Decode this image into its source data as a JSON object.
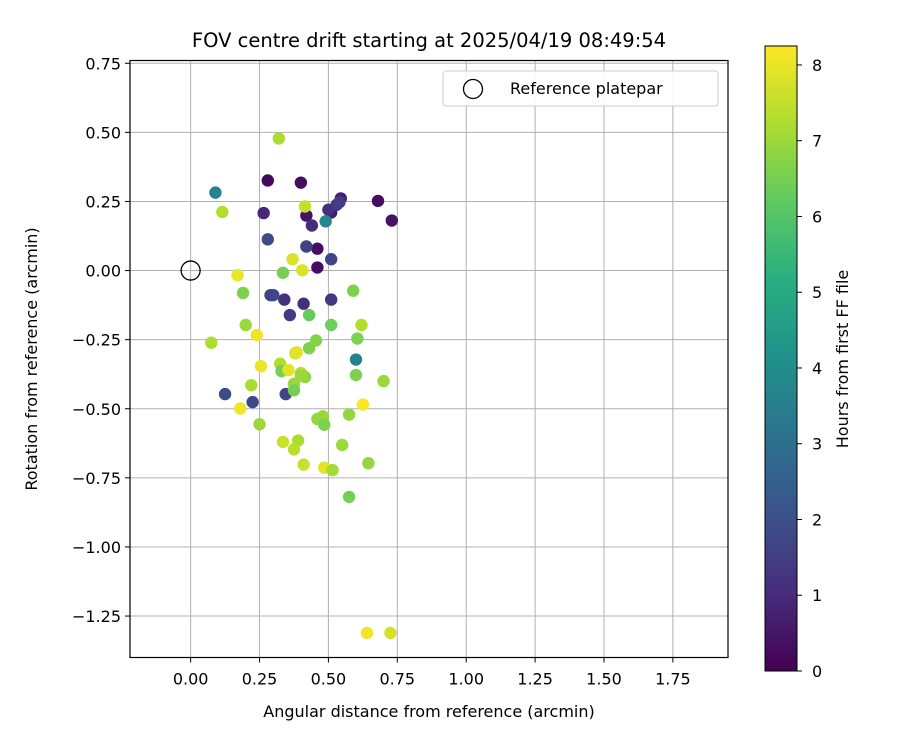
{
  "chart_data": {
    "type": "scatter",
    "title": "FOV centre drift starting at 2025/04/19 08:49:54",
    "xlabel": "Angular distance from reference (arcmin)",
    "ylabel": "Rotation from reference (arcmin)",
    "xlim": [
      -0.22,
      1.95
    ],
    "ylim": [
      -1.4,
      0.76
    ],
    "xticks": [
      "0.00",
      "0.25",
      "0.50",
      "0.75",
      "1.00",
      "1.25",
      "1.50",
      "1.75"
    ],
    "xtick_values": [
      0,
      0.25,
      0.5,
      0.75,
      1.0,
      1.25,
      1.5,
      1.75
    ],
    "yticks": [
      "0.75",
      "0.50",
      "0.25",
      "0.00",
      "−0.25",
      "−0.50",
      "−0.75",
      "−1.00",
      "−1.25"
    ],
    "ytick_values": [
      0.75,
      0.5,
      0.25,
      0,
      -0.25,
      -0.5,
      -0.75,
      -1.0,
      -1.25
    ],
    "grid": true,
    "legend": {
      "position": "top-right",
      "entries": [
        "Reference platepar"
      ]
    },
    "reference_point": {
      "x": 0,
      "y": 0,
      "marker": "open-circle"
    },
    "colorbar": {
      "label": "Hours from first FF file",
      "colormap": "viridis",
      "range": [
        0,
        8.25
      ],
      "ticks": [
        "0",
        "1",
        "2",
        "3",
        "4",
        "5",
        "6",
        "7",
        "8"
      ],
      "tick_values": [
        0,
        1,
        2,
        3,
        4,
        5,
        6,
        7,
        8
      ]
    },
    "points": [
      {
        "x": 0.28,
        "y": 0.326,
        "c": 0.2
      },
      {
        "x": 0.4,
        "y": 0.318,
        "c": 0.3
      },
      {
        "x": 0.68,
        "y": 0.252,
        "c": 0.3
      },
      {
        "x": 0.73,
        "y": 0.181,
        "c": 0.4
      },
      {
        "x": 0.42,
        "y": 0.199,
        "c": 0.4
      },
      {
        "x": 0.46,
        "y": 0.079,
        "c": 0.3
      },
      {
        "x": 0.46,
        "y": 0.011,
        "c": 0.3
      },
      {
        "x": 0.51,
        "y": 0.21,
        "c": 0.6
      },
      {
        "x": 0.545,
        "y": 0.261,
        "c": 0.7
      },
      {
        "x": 0.265,
        "y": 0.208,
        "c": 0.9
      },
      {
        "x": 0.44,
        "y": 0.163,
        "c": 1.0
      },
      {
        "x": 0.5,
        "y": 0.22,
        "c": 1.1
      },
      {
        "x": 0.53,
        "y": 0.238,
        "c": 1.3
      },
      {
        "x": 0.54,
        "y": 0.247,
        "c": 1.5
      },
      {
        "x": 0.42,
        "y": 0.087,
        "c": 1.6
      },
      {
        "x": 0.51,
        "y": 0.041,
        "c": 1.7
      },
      {
        "x": 0.28,
        "y": 0.113,
        "c": 1.9
      },
      {
        "x": 0.34,
        "y": -0.105,
        "c": 1.2
      },
      {
        "x": 0.41,
        "y": -0.12,
        "c": 1.1
      },
      {
        "x": 0.36,
        "y": -0.161,
        "c": 1.4
      },
      {
        "x": 0.51,
        "y": -0.105,
        "c": 1.3
      },
      {
        "x": 0.29,
        "y": -0.089,
        "c": 1.6
      },
      {
        "x": 0.3,
        "y": -0.089,
        "c": 1.7
      },
      {
        "x": 0.125,
        "y": -0.447,
        "c": 1.9
      },
      {
        "x": 0.225,
        "y": -0.476,
        "c": 1.8
      },
      {
        "x": 0.345,
        "y": -0.447,
        "c": 1.7
      },
      {
        "x": 0.09,
        "y": 0.282,
        "c": 3.7
      },
      {
        "x": 0.49,
        "y": 0.178,
        "c": 3.8
      },
      {
        "x": 0.6,
        "y": -0.322,
        "c": 3.7
      },
      {
        "x": 0.32,
        "y": 0.478,
        "c": 7.2
      },
      {
        "x": 0.115,
        "y": 0.212,
        "c": 7.3
      },
      {
        "x": 0.415,
        "y": 0.232,
        "c": 7.5
      },
      {
        "x": 0.37,
        "y": 0.041,
        "c": 7.8
      },
      {
        "x": 0.405,
        "y": 0.001,
        "c": 7.8
      },
      {
        "x": 0.17,
        "y": -0.017,
        "c": 8.0
      },
      {
        "x": 0.335,
        "y": -0.008,
        "c": 6.5
      },
      {
        "x": 0.19,
        "y": -0.081,
        "c": 6.6
      },
      {
        "x": 0.43,
        "y": -0.161,
        "c": 6.3
      },
      {
        "x": 0.51,
        "y": -0.197,
        "c": 6.4
      },
      {
        "x": 0.59,
        "y": -0.073,
        "c": 6.6
      },
      {
        "x": 0.2,
        "y": -0.197,
        "c": 7.0
      },
      {
        "x": 0.075,
        "y": -0.261,
        "c": 7.2
      },
      {
        "x": 0.24,
        "y": -0.233,
        "c": 8.1
      },
      {
        "x": 0.62,
        "y": -0.197,
        "c": 7.3
      },
      {
        "x": 0.605,
        "y": -0.246,
        "c": 6.6
      },
      {
        "x": 0.43,
        "y": -0.281,
        "c": 6.6
      },
      {
        "x": 0.455,
        "y": -0.253,
        "c": 6.7
      },
      {
        "x": 0.38,
        "y": -0.299,
        "c": 7.6
      },
      {
        "x": 0.385,
        "y": -0.296,
        "c": 7.9
      },
      {
        "x": 0.325,
        "y": -0.337,
        "c": 7.3
      },
      {
        "x": 0.33,
        "y": -0.364,
        "c": 6.5
      },
      {
        "x": 0.255,
        "y": -0.346,
        "c": 8.0
      },
      {
        "x": 0.355,
        "y": -0.36,
        "c": 7.9
      },
      {
        "x": 0.4,
        "y": -0.371,
        "c": 7.3
      },
      {
        "x": 0.415,
        "y": -0.385,
        "c": 6.8
      },
      {
        "x": 0.4,
        "y": -0.381,
        "c": 7.0
      },
      {
        "x": 0.6,
        "y": -0.378,
        "c": 6.6
      },
      {
        "x": 0.7,
        "y": -0.4,
        "c": 7.0
      },
      {
        "x": 0.375,
        "y": -0.41,
        "c": 7.0
      },
      {
        "x": 0.375,
        "y": -0.433,
        "c": 6.5
      },
      {
        "x": 0.22,
        "y": -0.415,
        "c": 7.2
      },
      {
        "x": 0.18,
        "y": -0.499,
        "c": 8.1
      },
      {
        "x": 0.625,
        "y": -0.485,
        "c": 8.2
      },
      {
        "x": 0.575,
        "y": -0.521,
        "c": 6.9
      },
      {
        "x": 0.48,
        "y": -0.527,
        "c": 7.0
      },
      {
        "x": 0.46,
        "y": -0.537,
        "c": 6.9
      },
      {
        "x": 0.485,
        "y": -0.558,
        "c": 6.6
      },
      {
        "x": 0.25,
        "y": -0.556,
        "c": 7.0
      },
      {
        "x": 0.335,
        "y": -0.62,
        "c": 7.6
      },
      {
        "x": 0.39,
        "y": -0.615,
        "c": 7.2
      },
      {
        "x": 0.55,
        "y": -0.631,
        "c": 7.0
      },
      {
        "x": 0.375,
        "y": -0.647,
        "c": 7.4
      },
      {
        "x": 0.645,
        "y": -0.697,
        "c": 6.9
      },
      {
        "x": 0.41,
        "y": -0.702,
        "c": 7.6
      },
      {
        "x": 0.485,
        "y": -0.713,
        "c": 7.9
      },
      {
        "x": 0.515,
        "y": -0.722,
        "c": 7.1
      },
      {
        "x": 0.575,
        "y": -0.819,
        "c": 6.5
      },
      {
        "x": 0.64,
        "y": -1.311,
        "c": 8.1
      },
      {
        "x": 0.725,
        "y": -1.311,
        "c": 7.7
      }
    ]
  }
}
